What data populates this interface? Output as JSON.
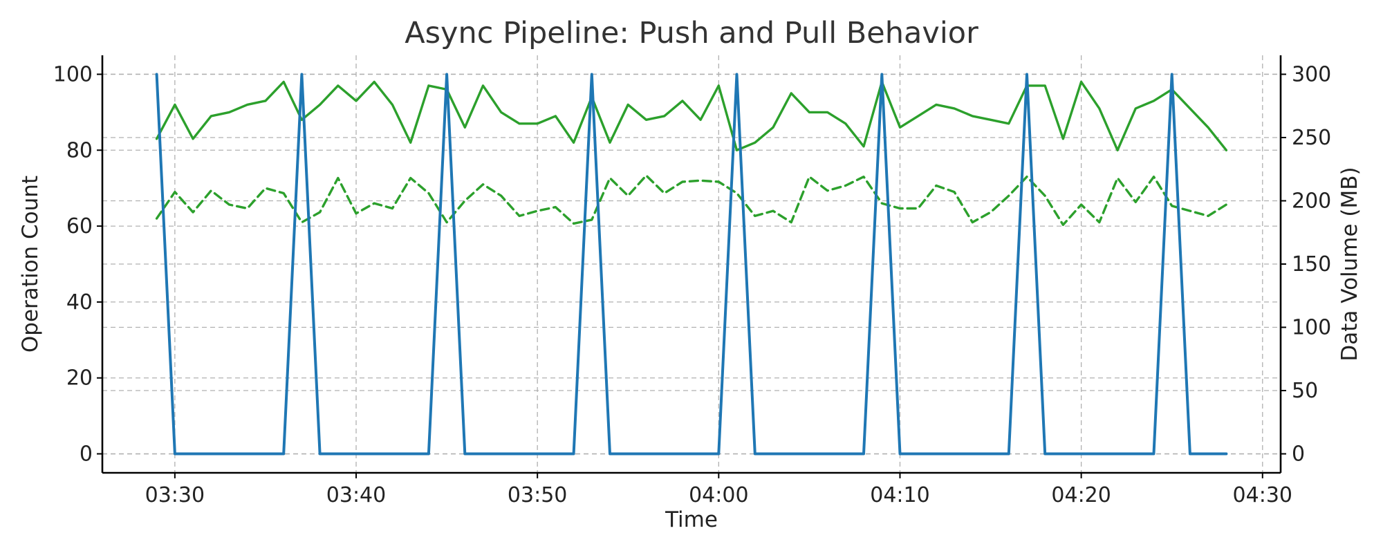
{
  "chart_data": {
    "type": "line",
    "title": "Async Pipeline: Push and Pull Behavior",
    "xlabel": "Time",
    "ylabel_left": "Operation Count",
    "ylabel_right": "Data Volume (MB)",
    "xlim": [
      "03:26",
      "04:31"
    ],
    "ylim_left": [
      -5,
      105
    ],
    "ylim_right": [
      -15,
      315
    ],
    "yticks_left": [
      "0",
      "20",
      "40",
      "60",
      "80",
      "100"
    ],
    "yticks_right": [
      "0",
      "50",
      "100",
      "150",
      "200",
      "250",
      "300"
    ],
    "xticks": [
      "03:30",
      "03:40",
      "03:50",
      "04:00",
      "04:10",
      "04:20",
      "04:30"
    ],
    "grid": true,
    "colors": {
      "operations": "#1f77b4",
      "volume": "#2ca02c"
    },
    "x": [
      "03:29",
      "03:30",
      "03:31",
      "03:32",
      "03:33",
      "03:34",
      "03:35",
      "03:36",
      "03:37",
      "03:38",
      "03:39",
      "03:40",
      "03:41",
      "03:42",
      "03:43",
      "03:44",
      "03:45",
      "03:46",
      "03:47",
      "03:48",
      "03:49",
      "03:50",
      "03:51",
      "03:52",
      "03:53",
      "03:54",
      "03:55",
      "03:56",
      "03:57",
      "03:58",
      "03:59",
      "04:00",
      "04:01",
      "04:02",
      "04:03",
      "04:04",
      "04:05",
      "04:06",
      "04:07",
      "04:08",
      "04:09",
      "04:10",
      "04:11",
      "04:12",
      "04:13",
      "04:14",
      "04:15",
      "04:16",
      "04:17",
      "04:18",
      "04:19",
      "04:20",
      "04:21",
      "04:22",
      "04:23",
      "04:24",
      "04:25",
      "04:26",
      "04:27",
      "04:28"
    ],
    "series": [
      {
        "axis": "left",
        "style": "solid",
        "color": "#1f77b4",
        "values": [
          100,
          0,
          0,
          0,
          0,
          0,
          0,
          0,
          100,
          0,
          0,
          0,
          0,
          0,
          0,
          0,
          100,
          0,
          0,
          0,
          0,
          0,
          0,
          0,
          100,
          0,
          0,
          0,
          0,
          0,
          0,
          0,
          100,
          0,
          0,
          0,
          0,
          0,
          0,
          0,
          100,
          0,
          0,
          0,
          0,
          0,
          0,
          0,
          100,
          0,
          0,
          0,
          0,
          0,
          0,
          0,
          100,
          0,
          0,
          0
        ]
      },
      {
        "axis": "right",
        "style": "solid",
        "color": "#2ca02c",
        "values": [
          249,
          276,
          249,
          267,
          270,
          276,
          279,
          294,
          264,
          276,
          291,
          279,
          294,
          276,
          246,
          291,
          288,
          258,
          291,
          270,
          261,
          261,
          267,
          246,
          282,
          246,
          276,
          264,
          267,
          279,
          264,
          291,
          240,
          246,
          258,
          285,
          270,
          270,
          261,
          243,
          294,
          258,
          267,
          276,
          273,
          267,
          264,
          261,
          291,
          291,
          249,
          294,
          273,
          240,
          273,
          279,
          288,
          273,
          258,
          240
        ]
      },
      {
        "axis": "right",
        "style": "dashed",
        "color": "#2ca02c",
        "values": [
          186,
          207,
          191,
          208,
          197,
          194,
          210,
          206,
          183,
          191,
          218,
          190,
          198,
          194,
          218,
          206,
          183,
          200,
          213,
          204,
          188,
          192,
          195,
          182,
          185,
          218,
          204,
          220,
          206,
          215,
          216,
          215,
          206,
          188,
          192,
          183,
          219,
          208,
          212,
          219,
          198,
          194,
          194,
          212,
          207,
          183,
          191,
          204,
          219,
          204,
          181,
          197,
          183,
          218,
          199,
          219,
          196,
          192,
          188,
          197
        ]
      }
    ]
  }
}
